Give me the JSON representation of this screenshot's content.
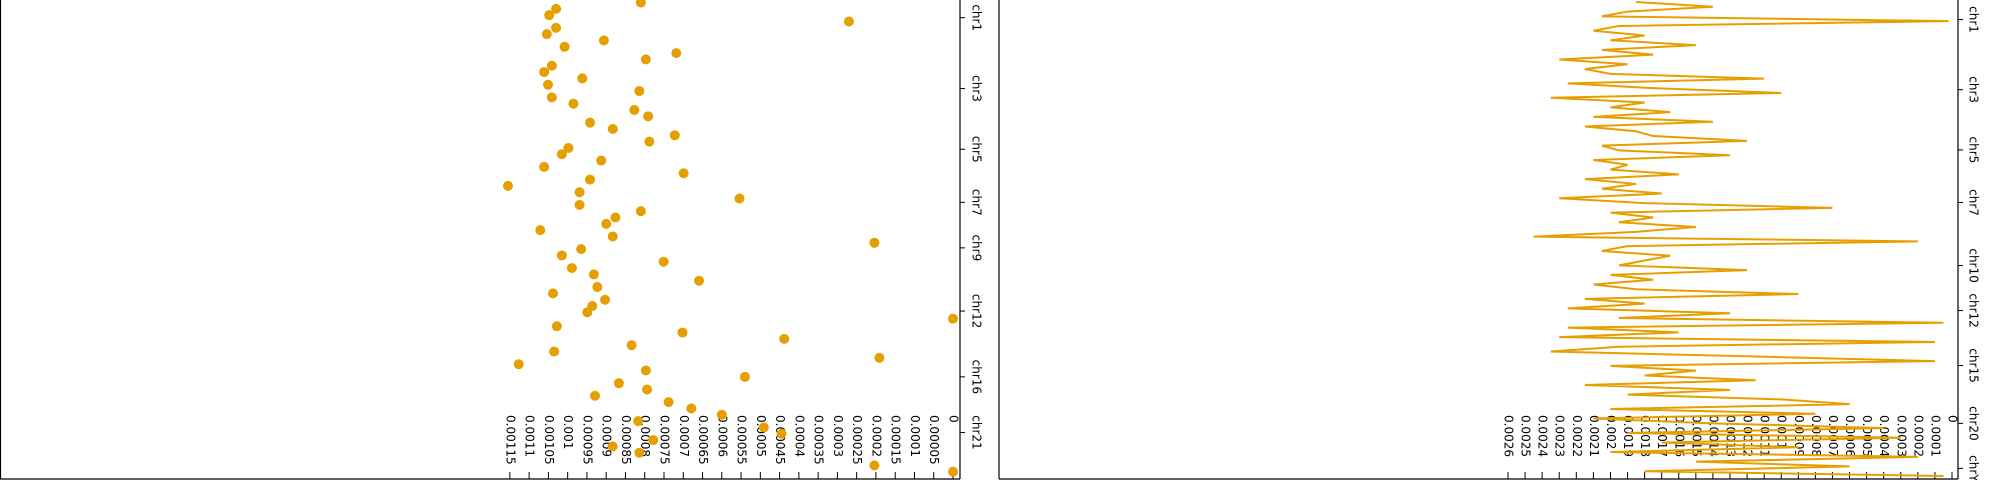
{
  "chart_data": [
    {
      "type": "scatter",
      "color": "#e69f00",
      "xlim": [
        0,
        0.00116
      ],
      "xticks": [
        0,
        5e-05,
        0.0001,
        0.00015,
        0.0002,
        0.00025,
        0.0003,
        0.00035,
        0.0004,
        0.00045,
        0.0005,
        0.00055,
        0.0006,
        0.00065,
        0.0007,
        0.00075,
        0.0008,
        0.00085,
        0.0009,
        0.00095,
        0.001,
        0.00105,
        0.0011,
        0.00115
      ],
      "ylim": [
        0,
        75.6
      ],
      "yticks": [
        {
          "value": 2.8,
          "label": "chr1"
        },
        {
          "value": 14,
          "label": "chr3"
        },
        {
          "value": 23.6,
          "label": "chr5"
        },
        {
          "value": 32,
          "label": "chr7"
        },
        {
          "value": 39.2,
          "label": "chr9"
        },
        {
          "value": 49.2,
          "label": "chr12"
        },
        {
          "value": 59.6,
          "label": "chr16"
        },
        {
          "value": 68.4,
          "label": "chr21"
        }
      ],
      "positions": [
        0.4,
        1.4,
        2.4,
        3.4,
        4.4,
        5.4,
        6.4,
        7.4,
        8.4,
        9.4,
        10.4,
        11.4,
        12.4,
        13.4,
        14.4,
        15.4,
        16.4,
        17.4,
        18.4,
        19.4,
        20.4,
        21.4,
        22.4,
        23.4,
        24.4,
        25.4,
        26.4,
        27.4,
        28.4,
        29.4,
        30.4,
        31.4,
        32.4,
        33.4,
        34.4,
        35.4,
        36.4,
        37.4,
        38.4,
        39.4,
        40.4,
        41.4,
        42.4,
        43.4,
        44.4,
        45.4,
        46.4,
        47.4,
        48.4,
        49.4,
        50.4,
        51.6,
        52.6,
        53.6,
        54.6,
        55.6,
        56.6,
        57.6,
        58.6,
        59.6,
        60.6,
        61.6,
        62.6,
        63.6,
        64.6,
        65.6,
        66.6,
        67.6,
        68.6,
        69.6,
        70.6,
        71.6,
        73.6,
        74.6
      ],
      "values": [
        0.00081,
        0.00103,
        0.001048,
        0.00027,
        0.00103,
        0.001054,
        0.000906,
        0.001008,
        0.000718,
        0.000797,
        0.001041,
        0.001061,
        0.000962,
        0.001051,
        0.000814,
        0.001041,
        0.000985,
        0.000827,
        0.000791,
        0.000942,
        0.000883,
        0.000722,
        0.000788,
        0.000998,
        0.001015,
        0.000913,
        0.001061,
        0.000699,
        0.000942,
        0.001155,
        0.000969,
        0.000554,
        0.000969,
        0.00081,
        0.000876,
        0.0009,
        0.001071,
        0.000883,
        0.000204,
        0.000965,
        0.001015,
        0.000751,
        0.000989,
        0.000932,
        0.000659,
        0.000923,
        0.001038,
        0.000903,
        0.000936,
        0.000949,
        0,
        0.001028,
        0.000702,
        0.000438,
        0.000834,
        0.001035,
        0.000191,
        0.001127,
        0.000797,
        0.00054,
        0.000867,
        0.000794,
        0.000929,
        0.000738,
        0.000679,
        0.0006,
        0.000817,
        0.000491,
        0.000445,
        0.000778,
        0.000883,
        0.000814,
        0.000204,
        0
      ]
    },
    {
      "type": "line",
      "color": "#e69f00",
      "xlim": [
        0,
        0.0026
      ],
      "xticks": [
        0,
        0.0001,
        0.0002,
        0.0003,
        0.0004,
        0.0005,
        0.0006,
        0.0007,
        0.0008,
        0.0009,
        0.001,
        0.0011,
        0.0012,
        0.0013,
        0.0014,
        0.0015,
        0.0016,
        0.0017,
        0.0018,
        0.0019,
        0.002,
        0.0021,
        0.0022,
        0.0023,
        0.0024,
        0.0025,
        0.0026
      ],
      "ylim": [
        0,
        100
      ],
      "yticks": [
        {
          "value": 3.7,
          "label": "chr1"
        },
        {
          "value": 18.5,
          "label": "chr3"
        },
        {
          "value": 31.2,
          "label": "chr5"
        },
        {
          "value": 42.3,
          "label": "chr7"
        },
        {
          "value": 55.6,
          "label": "chr10"
        },
        {
          "value": 65.1,
          "label": "chr12"
        },
        {
          "value": 76.7,
          "label": "chr15"
        },
        {
          "value": 88.9,
          "label": "chr20"
        },
        {
          "value": 98.4,
          "label": "chrY"
        }
      ],
      "values": [
        0.00185,
        0.0014,
        0.0019,
        0.00205,
        2e-05,
        0.00195,
        0.0021,
        0.0018,
        0.002,
        0.0015,
        0.00205,
        0.00175,
        0.0023,
        0.0019,
        0.00215,
        0.002,
        0.0011,
        0.00225,
        0.00175,
        0.001,
        0.00235,
        0.0018,
        0.002,
        0.00165,
        0.0021,
        0.0014,
        0.00215,
        0.00185,
        0.00175,
        0.0012,
        0.00205,
        0.00195,
        0.0013,
        0.0021,
        0.0019,
        0.002,
        0.0016,
        0.00215,
        0.00185,
        0.00205,
        0.0017,
        0.0023,
        0.0018,
        0.0007,
        0.002,
        0.00175,
        0.00195,
        0.0015,
        0.00185,
        0.00245,
        0.0002,
        0.0019,
        0.00205,
        0.00165,
        0.0018,
        0.00195,
        0.0012,
        0.002,
        0.00175,
        0.0021,
        0.00185,
        0.0009,
        0.00215,
        0.0018,
        0.00225,
        0.0013,
        0.00195,
        5e-05,
        0.00225,
        0.0016,
        0.0023,
        0.0001,
        0.00195,
        0.00235,
        0.0012,
        0.0001,
        0.002,
        0.0015,
        0.0018,
        0.00115,
        0.00215,
        0.0013,
        0.0019,
        0.001,
        0.0006,
        0.002,
        0.0008,
        0.0021,
        0.0014,
        0.0004,
        0.0019,
        0.0003,
        0.0017,
        0.0009,
        0.002,
        0.0002,
        0.0015,
        0.0006,
        0.0018,
        5e-05
      ]
    }
  ]
}
